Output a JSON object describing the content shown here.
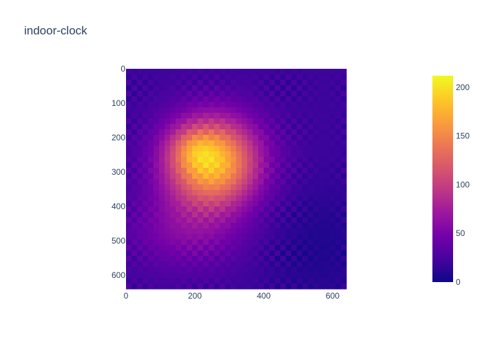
{
  "chart_data": {
    "type": "heatmap",
    "title": "indoor-clock",
    "xlabel": "",
    "ylabel": "",
    "xlim": [
      0,
      640
    ],
    "ylim": [
      0,
      640
    ],
    "y_reversed": true,
    "x_ticks": [
      "0",
      "200",
      "400",
      "600"
    ],
    "y_ticks": [
      "0",
      "100",
      "200",
      "300",
      "400",
      "500",
      "600"
    ],
    "colorbar": {
      "range": [
        0,
        212
      ],
      "ticks": [
        "0",
        "50",
        "100",
        "150",
        "200"
      ],
      "colorscale": "plasma"
    },
    "grid": false,
    "value_peaks": [
      {
        "x": 250,
        "y": 270,
        "value": 205
      },
      {
        "x": 195,
        "y": 235,
        "value": 212
      }
    ],
    "background_value": 20
  }
}
